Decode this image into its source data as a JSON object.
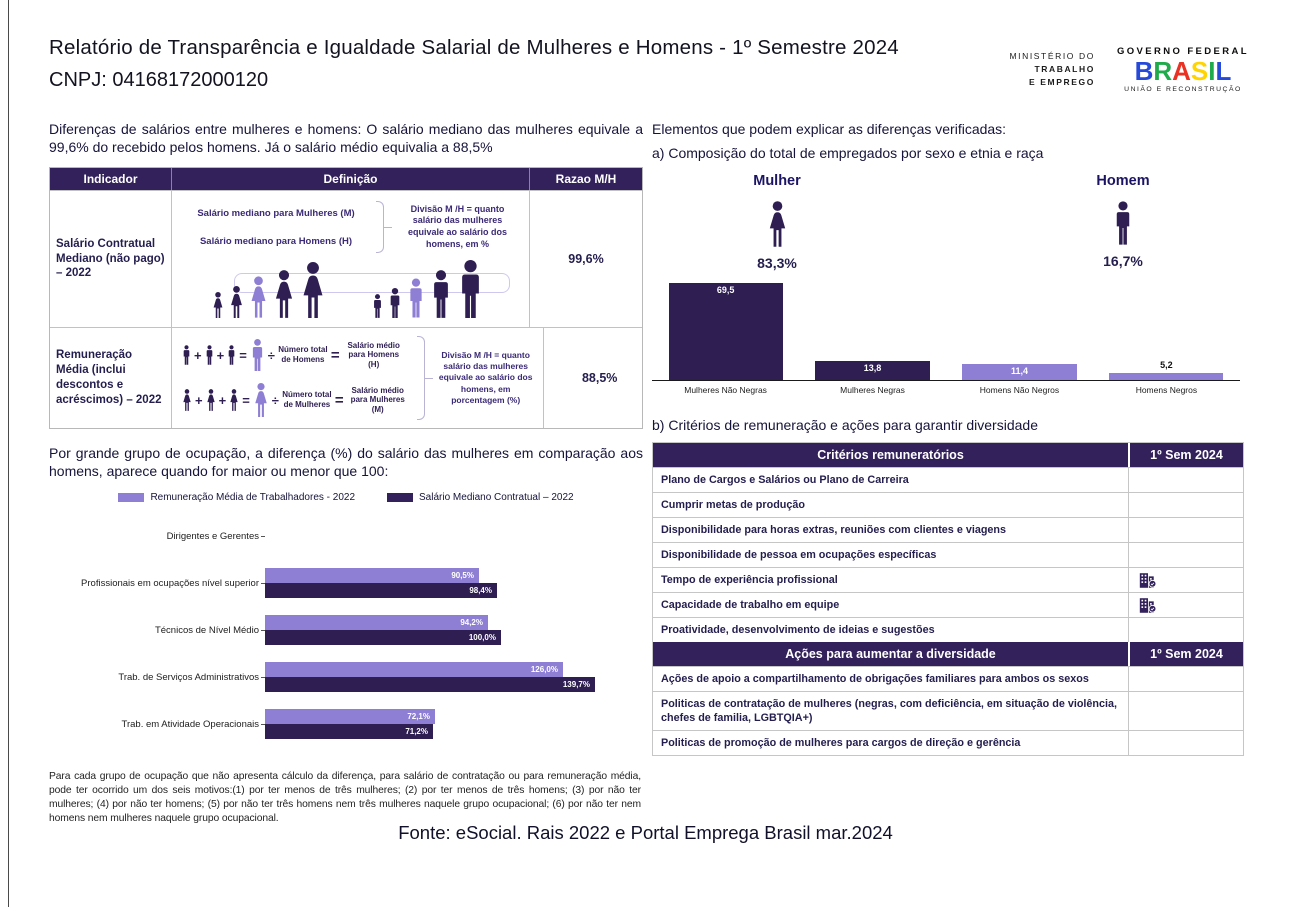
{
  "page": {
    "title": "Relatório de Transparência e Igualdade Salarial de Mulheres e Homens - 1º Semestre 2024",
    "cnpj": "CNPJ: 04168172000120",
    "footer_source": "Fonte: eSocial. Rais 2022 e Portal Emprega Brasil mar.2024"
  },
  "logos": {
    "ministry_lines": [
      "MINISTÉRIO DO",
      "TRABALHO",
      "E EMPREGO"
    ],
    "gov_top": "GOVERNO FEDERAL",
    "gov_name": "BRASIL",
    "gov_bottom": "UNIÃO E RECONSTRUÇÃO"
  },
  "left": {
    "intro": "Diferenças de salários entre mulheres e homens: O salário mediano das mulheres equivale a 99,6% do recebido pelos homens. Já o salário médio equivalia a 88,5%",
    "table": {
      "headers": [
        "Indicador",
        "Definição",
        "Razao M/H"
      ],
      "rows": [
        {
          "indicator": "Salário Contratual Mediano (não pago) – 2022",
          "def_label_1": "Salário mediano para Mulheres (M)",
          "def_label_2": "Salário mediano para Homens (H)",
          "def_note": "Divisão M /H = quanto salário das mulheres equivale ao salário dos homens, em %",
          "ratio": "99,6%"
        },
        {
          "indicator": "Remuneração Média (inclui descontos e acréscimos) – 2022",
          "line1": {
            "divide_label": "Número total de Homens",
            "result_label": "Salário médio para Homens (H)"
          },
          "line2": {
            "divide_label": "Número total de Mulheres",
            "result_label": "Salário médio para Mulheres (M)"
          },
          "def_note": "Divisão M /H = quanto salário das mulheres equivale ao salário dos homens, em porcentagem (%)",
          "ratio": "88,5%"
        }
      ]
    },
    "occupation_intro": "Por grande grupo de ocupação, a diferença (%) do salário das mulheres em comparação aos homens, aparece quando for maior ou menor que 100:",
    "footnote": "Para cada grupo de ocupação que não apresenta cálculo da diferença, para salário de contratação ou para remuneração média, pode ter ocorrido um dos seis motivos:(1) por ter menos de três mulheres; (2) por ter menos de três homens; (3) por não ter mulheres; (4) por não ter homens; (5) por não ter três homens nem três mulheres naquele grupo ocupacional; (6) por não ter nem homens nem mulheres naquele grupo ocupacional."
  },
  "right": {
    "heading": "Elementos que podem explicar as diferenças verificadas:",
    "sub_a": "a) Composição do total de empregados por sexo e etnia e raça",
    "mulher_label": "Mulher",
    "mulher_pct": "83,3%",
    "homem_label": "Homem",
    "homem_pct": "16,7%",
    "sub_b": "b) Critérios de remuneração e ações para garantir diversidade",
    "criteria_table": {
      "header1": "Critérios remuneratórios",
      "period": "1º Sem 2024",
      "criteria_rows": [
        {
          "label": "Plano de Cargos e Salários ou Plano de Carreira",
          "checked": false
        },
        {
          "label": "Cumprir metas de produção",
          "checked": false
        },
        {
          "label": "Disponibilidade para horas extras, reuniões com clientes e viagens",
          "checked": false
        },
        {
          "label": "Disponibilidade de pessoa em ocupações específicas",
          "checked": false
        },
        {
          "label": "Tempo de experiência profissional",
          "checked": true
        },
        {
          "label": "Capacidade de trabalho em equipe",
          "checked": true
        },
        {
          "label": "Proatividade, desenvolvimento de ideias e sugestões",
          "checked": false
        }
      ],
      "header2": "Ações para aumentar a diversidade",
      "period2": "1º Sem 2024",
      "action_rows": [
        {
          "label": "Ações de apoio a compartilhamento de obrigações familiares para ambos os sexos",
          "checked": false
        },
        {
          "label": "Politicas de contratação de mulheres (negras, com deficiência, em situação de violência, chefes de familia, LGBTQIA+)",
          "checked": false
        },
        {
          "label": "Politicas de promoção de mulheres para cargos de direção e gerência",
          "checked": false
        }
      ]
    }
  },
  "colors": {
    "dark_purple": "#2e1e52",
    "light_purple": "#8f7fd4",
    "header_purple": "#32215a",
    "navy_text": "#241e4e"
  },
  "chart_data": [
    {
      "type": "bar",
      "title": "a) Composição do total de empregados por sexo e etnia e raça",
      "categories": [
        "Mulheres Não Negras",
        "Mulheres Negras",
        "Homens Não Negros",
        "Homens Negros"
      ],
      "values": [
        69.5,
        13.8,
        11.4,
        5.2
      ],
      "labels": [
        "69,5",
        "13,8",
        "11,4",
        "5,2"
      ],
      "bar_colors": [
        "dark",
        "dark",
        "light",
        "light"
      ],
      "annotations": {
        "mulher_total": 83.3,
        "homem_total": 16.7
      },
      "xlabel": "",
      "ylabel": "",
      "ylim": [
        0,
        75
      ],
      "grid": false,
      "legend_position": "none"
    },
    {
      "type": "bar-horizontal-grouped",
      "title": "Por grande grupo de ocupação, a diferença (%) do salário das mulheres em comparação aos homens",
      "categories": [
        "Dirigentes e Gerentes",
        "Profissionais em ocupações nível superior",
        "Técnicos de Nível Médio",
        "Trab. de Serviços Administrativos",
        "Trab. em Atividade Operacionais"
      ],
      "series": [
        {
          "name": "Remuneração Média de Trabalhadores - 2022",
          "color": "light",
          "values": [
            null,
            90.5,
            94.2,
            126.0,
            72.1
          ],
          "labels": [
            "",
            "90,5%",
            "94,2%",
            "126,0%",
            "72,1%"
          ]
        },
        {
          "name": "Salário Mediano Contratual – 2022",
          "color": "dark",
          "values": [
            null,
            98.4,
            100.0,
            139.7,
            71.2
          ],
          "labels": [
            "",
            "98,4%",
            "100,0%",
            "139,7%",
            "71,2%"
          ]
        }
      ],
      "xlabel": "",
      "ylabel": "",
      "xlim": [
        0,
        145
      ],
      "grid": false,
      "legend_position": "top-center"
    }
  ]
}
